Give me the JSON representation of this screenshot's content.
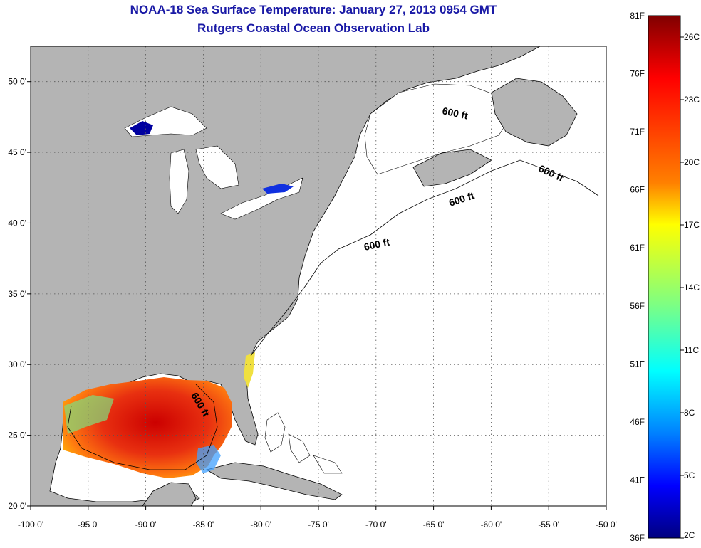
{
  "title": "NOAA-18 Sea Surface Temperature:  January 27, 2013 0954 GMT",
  "subtitle": "Rutgers Coastal Ocean Observation Lab",
  "map": {
    "lon_range": [
      -100,
      -50
    ],
    "lat_range": [
      20,
      52.5
    ],
    "x_ticks": [
      "-100 0'",
      "-95 0'",
      "-90 0'",
      "-85 0'",
      "-80 0'",
      "-75 0'",
      "-70 0'",
      "-65 0'",
      "-60 0'",
      "-55 0'",
      "-50 0'"
    ],
    "y_ticks": [
      "50 0'",
      "45 0'",
      "40 0'",
      "35 0'",
      "30 0'",
      "25 0'",
      "20 0'"
    ],
    "grid": "dotted",
    "land_color": "#b4b4b4",
    "water_color": "#ffffff",
    "contour_labels": [
      "600 ft",
      "600 ft",
      "600 ft",
      "600 ft",
      "600 ft"
    ]
  },
  "colorbar": {
    "f_labels": [
      "81F",
      "76F",
      "71F",
      "66F",
      "61F",
      "56F",
      "51F",
      "46F",
      "41F",
      "36F"
    ],
    "c_labels": [
      "26C",
      "23C",
      "20C",
      "17C",
      "14C",
      "11C",
      "8C",
      "5C",
      "2C"
    ],
    "colors": [
      "#800000",
      "#ff0000",
      "#ff8000",
      "#ffff00",
      "#80ff80",
      "#00ffff",
      "#0080ff",
      "#0000ff",
      "#000080"
    ]
  }
}
